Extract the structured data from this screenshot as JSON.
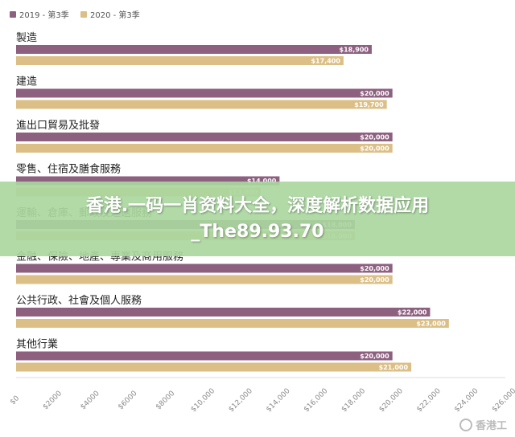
{
  "chart_data": {
    "type": "bar",
    "orientation": "horizontal",
    "categories": [
      "製造",
      "建造",
      "進出口貿易及批發",
      "零售、住宿及膳食服務",
      "運輸、倉庫、郵政及速遞服務",
      "金融、保險、地產、專業及商用服務",
      "公共行政、社會及個人服務",
      "其他行業"
    ],
    "series": [
      {
        "name": "2019 - 第3季",
        "color": "#8e6080",
        "values": [
          18900,
          20000,
          20000,
          14000,
          18000,
          20000,
          22000,
          20000
        ],
        "labels": [
          "$18,900",
          "$20,000",
          "$20,000",
          "$14,000",
          "$18,000",
          "$20,000",
          "$22,000",
          "$20,000"
        ]
      },
      {
        "name": "2020 - 第3季",
        "color": "#dcbf86",
        "values": [
          17400,
          19700,
          20000,
          13000,
          18000,
          20000,
          23000,
          21000
        ],
        "labels": [
          "$17,400",
          "$19,700",
          "$20,000",
          "$13,000",
          "$18,000",
          "$20,000",
          "$23,000",
          "$21,000"
        ]
      }
    ],
    "xlim": [
      0,
      26000
    ],
    "xticks": [
      "$0",
      "$2000",
      "$4000",
      "$6000",
      "$8000",
      "$10,000",
      "$12,000",
      "$14,000",
      "$16,000",
      "$18,000",
      "$20,000",
      "$22,000",
      "$24,000",
      "$26,000"
    ],
    "legend": "top-left",
    "grid": false
  },
  "overlay": {
    "text": "香港.一码一肖资料大全，深度解析数据应用_The89.93.70"
  },
  "watermark": {
    "text": "香港工"
  }
}
